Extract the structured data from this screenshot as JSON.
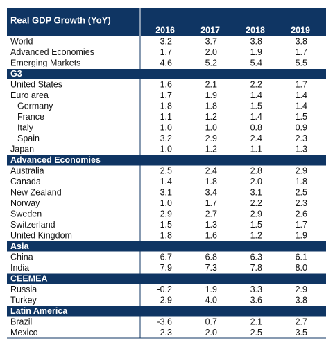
{
  "table": {
    "title": "Real GDP Growth (YoY)",
    "columns": [
      "2016",
      "2017",
      "2018",
      "2019"
    ],
    "sections": [
      {
        "rows": [
          {
            "label": "World",
            "values": [
              "3.2",
              "3.7",
              "3.8",
              "3.8"
            ]
          },
          {
            "label": "Advanced Economies",
            "values": [
              "1.7",
              "2.0",
              "1.9",
              "1.7"
            ]
          },
          {
            "label": "Emerging Markets",
            "values": [
              "4.6",
              "5.2",
              "5.4",
              "5.5"
            ]
          }
        ]
      },
      {
        "header": "G3",
        "rows": [
          {
            "label": "United States",
            "values": [
              "1.6",
              "2.1",
              "2.2",
              "1.7"
            ]
          },
          {
            "label": "Euro area",
            "values": [
              "1.7",
              "1.9",
              "1.4",
              "1.4"
            ],
            "children": [
              {
                "label": "Germany",
                "values": [
                  "1.8",
                  "1.8",
                  "1.5",
                  "1.4"
                ]
              },
              {
                "label": "France",
                "values": [
                  "1.1",
                  "1.2",
                  "1.4",
                  "1.5"
                ]
              },
              {
                "label": "Italy",
                "values": [
                  "1.0",
                  "1.0",
                  "0.8",
                  "0.9"
                ]
              },
              {
                "label": "Spain",
                "values": [
                  "3.2",
                  "2.9",
                  "2.4",
                  "2.3"
                ]
              }
            ]
          },
          {
            "label": "Japan",
            "values": [
              "1.0",
              "1.2",
              "1.1",
              "1.3"
            ]
          }
        ]
      },
      {
        "header": "Advanced Economies",
        "rows": [
          {
            "label": "Australia",
            "values": [
              "2.5",
              "2.4",
              "2.8",
              "2.9"
            ]
          },
          {
            "label": "Canada",
            "values": [
              "1.4",
              "1.8",
              "2.0",
              "1.8"
            ]
          },
          {
            "label": "New Zealand",
            "values": [
              "3.1",
              "3.4",
              "3.1",
              "2.5"
            ]
          },
          {
            "label": "Norway",
            "values": [
              "1.0",
              "1.7",
              "2.2",
              "2.3"
            ]
          },
          {
            "label": "Sweden",
            "values": [
              "2.9",
              "2.7",
              "2.9",
              "2.6"
            ]
          },
          {
            "label": "Switzerland",
            "values": [
              "1.5",
              "1.3",
              "1.5",
              "1.7"
            ]
          },
          {
            "label": "United Kingdom",
            "values": [
              "1.8",
              "1.6",
              "1.2",
              "1.9"
            ]
          }
        ]
      },
      {
        "header": "Asia",
        "rows": [
          {
            "label": "China",
            "values": [
              "6.7",
              "6.8",
              "6.3",
              "6.1"
            ]
          },
          {
            "label": "India",
            "values": [
              "7.9",
              "7.3",
              "7.8",
              "8.0"
            ]
          }
        ]
      },
      {
        "header": "CEEMEA",
        "rows": [
          {
            "label": "Russia",
            "values": [
              "-0.2",
              "1.9",
              "3.3",
              "2.9"
            ]
          },
          {
            "label": "Turkey",
            "values": [
              "2.9",
              "4.0",
              "3.6",
              "3.8"
            ]
          }
        ]
      },
      {
        "header": "Latin America",
        "rows": [
          {
            "label": "Brazil",
            "values": [
              "-3.6",
              "0.7",
              "2.1",
              "2.7"
            ]
          },
          {
            "label": "Mexico",
            "values": [
              "2.3",
              "2.0",
              "2.5",
              "3.5"
            ]
          }
        ]
      }
    ]
  }
}
